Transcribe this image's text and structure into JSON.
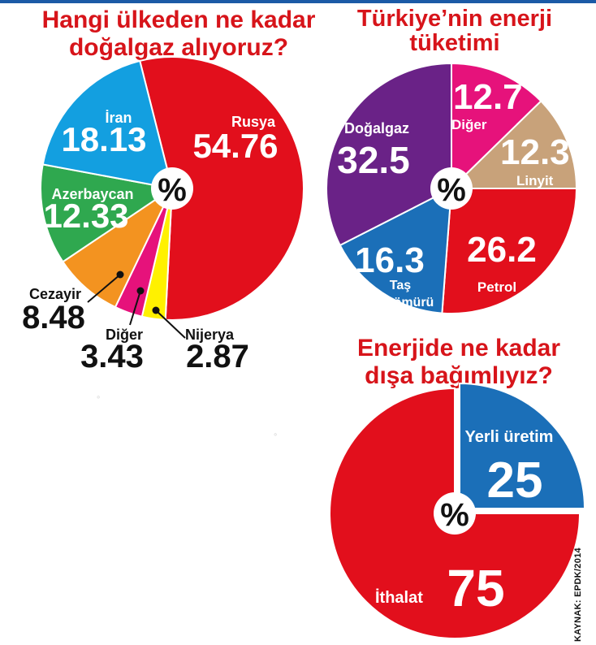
{
  "chart_data": [
    {
      "type": "pie",
      "title": "Hangi ülkeden ne kadar doğalgaz alıyoruz?",
      "center_label": "%",
      "slices": [
        {
          "label": "Rusya",
          "value_text": "54.76",
          "value": 54.76,
          "color": "#e20f1c"
        },
        {
          "label": "Nijerya",
          "value_text": "2.87",
          "value": 2.87,
          "color": "#fff100"
        },
        {
          "label": "Diğer",
          "value_text": "3.43",
          "value": 3.43,
          "color": "#e6127b"
        },
        {
          "label": "Cezayir",
          "value_text": "8.48",
          "value": 8.48,
          "color": "#f39320"
        },
        {
          "label": "Azerbaycan",
          "value_text": "12.33",
          "value": 12.33,
          "color": "#2fa84f"
        },
        {
          "label": "İran",
          "value_text": "18.13",
          "value": 18.13,
          "color": "#139fe0"
        }
      ]
    },
    {
      "type": "pie",
      "title": "Türkiye’nin enerji tüketimi",
      "center_label": "%",
      "slices": [
        {
          "label": "Diğer",
          "value_text": "12.7",
          "value": 12.7,
          "color": "#e6127b"
        },
        {
          "label": "Linyit",
          "value_text": "12.3",
          "value": 12.3,
          "color": "#c8a27a"
        },
        {
          "label": "Petrol",
          "value_text": "26.2",
          "value": 26.2,
          "color": "#e20f1c"
        },
        {
          "label": "Taş kömürü",
          "value_text": "16.3",
          "value": 16.3,
          "color": "#1b6fb8"
        },
        {
          "label": "Doğalgaz",
          "value_text": "32.5",
          "value": 32.5,
          "color": "#6a2287"
        }
      ]
    },
    {
      "type": "pie",
      "title": "Enerjide ne kadar dışa bağımlıyız?",
      "center_label": "%",
      "slices": [
        {
          "label": "Yerli üretim",
          "value_text": "25",
          "value": 25,
          "color": "#1b6fb8"
        },
        {
          "label": "İthalat",
          "value_text": "75",
          "value": 75,
          "color": "#e20f1c"
        }
      ]
    }
  ],
  "source": "KAYNAK: EPDK/2014"
}
